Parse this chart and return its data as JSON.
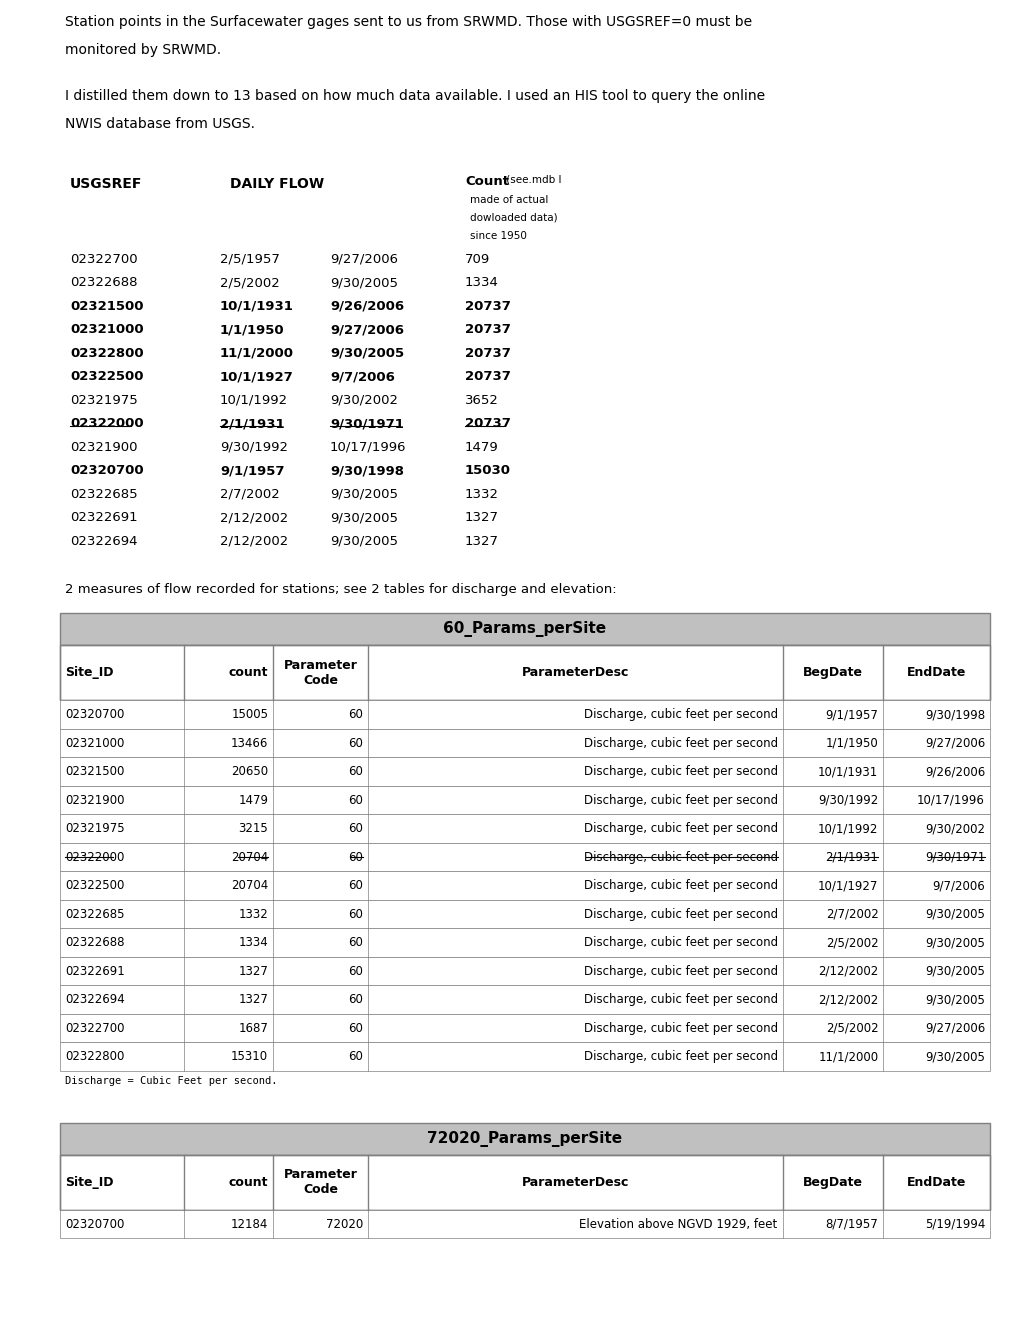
{
  "para1": "Station points in the Surfacewater gages sent to us from SRWMD. Those with USGSREF=0 must be\nmonitored by SRWMD.",
  "para2": "I distilled them down to 13 based on how much data available. I used an HIS tool to query the online\nNWIS database from USGS.",
  "summary_header": [
    "USGSREF",
    "DAILY FLOW",
    "",
    "Count (see.mdb I\nmade of actual\ndowloaded data)\nsince 1950"
  ],
  "summary_rows": [
    {
      "usgsref": "02322700",
      "start": "2/5/1957",
      "end": "9/27/2006",
      "count": "709",
      "bold": false,
      "strikethrough": false
    },
    {
      "usgsref": "02322688",
      "start": "2/5/2002",
      "end": "9/30/2005",
      "count": "1334",
      "bold": false,
      "strikethrough": false
    },
    {
      "usgsref": "02321500",
      "start": "10/1/1931",
      "end": "9/26/2006",
      "count": "20737",
      "bold": true,
      "strikethrough": false
    },
    {
      "usgsref": "02321000",
      "start": "1/1/1950",
      "end": "9/27/2006",
      "count": "20737",
      "bold": true,
      "strikethrough": false
    },
    {
      "usgsref": "02322800",
      "start": "11/1/2000",
      "end": "9/30/2005",
      "count": "20737",
      "bold": true,
      "strikethrough": false
    },
    {
      "usgsref": "02322500",
      "start": "10/1/1927",
      "end": "9/7/2006",
      "count": "20737",
      "bold": true,
      "strikethrough": false
    },
    {
      "usgsref": "02321975",
      "start": "10/1/1992",
      "end": "9/30/2002",
      "count": "3652",
      "bold": false,
      "strikethrough": false
    },
    {
      "usgsref": "02322000",
      "start": "2/1/1931",
      "end": "9/30/1971",
      "count": "20737",
      "bold": true,
      "strikethrough": true
    },
    {
      "usgsref": "02321900",
      "start": "9/30/1992",
      "end": "10/17/1996",
      "count": "1479",
      "bold": false,
      "strikethrough": false
    },
    {
      "usgsref": "02320700",
      "start": "9/1/1957",
      "end": "9/30/1998",
      "count": "15030",
      "bold": true,
      "strikethrough": false
    },
    {
      "usgsref": "02322685",
      "start": "2/7/2002",
      "end": "9/30/2005",
      "count": "1332",
      "bold": false,
      "strikethrough": false
    },
    {
      "usgsref": "02322691",
      "start": "2/12/2002",
      "end": "9/30/2005",
      "count": "1327",
      "bold": false,
      "strikethrough": false
    },
    {
      "usgsref": "02322694",
      "start": "2/12/2002",
      "end": "9/30/2005",
      "count": "1327",
      "bold": false,
      "strikethrough": false
    }
  ],
  "section_label": "2 measures of flow recorded for stations; see 2 tables for discharge and elevation:",
  "table1_title": "60_Params_perSite",
  "table1_headers": [
    "Site_ID",
    "count",
    "Parameter\nCode",
    "ParameterDesc",
    "BegDate",
    "EndDate"
  ],
  "table1_rows": [
    {
      "site": "02320700",
      "count": "15005",
      "code": "60",
      "desc": "Discharge, cubic feet per second",
      "beg": "9/1/1957",
      "end": "9/30/1998",
      "strike": false
    },
    {
      "site": "02321000",
      "count": "13466",
      "code": "60",
      "desc": "Discharge, cubic feet per second",
      "beg": "1/1/1950",
      "end": "9/27/2006",
      "strike": false
    },
    {
      "site": "02321500",
      "count": "20650",
      "code": "60",
      "desc": "Discharge, cubic feet per second",
      "beg": "10/1/1931",
      "end": "9/26/2006",
      "strike": false
    },
    {
      "site": "02321900",
      "count": "1479",
      "code": "60",
      "desc": "Discharge, cubic feet per second",
      "beg": "9/30/1992",
      "end": "10/17/1996",
      "strike": false
    },
    {
      "site": "02321975",
      "count": "3215",
      "code": "60",
      "desc": "Discharge, cubic feet per second",
      "beg": "10/1/1992",
      "end": "9/30/2002",
      "strike": false
    },
    {
      "site": "02322000",
      "count": "20704",
      "code": "60",
      "desc": "Discharge, cubic feet per second",
      "beg": "2/1/1931",
      "end": "9/30/1971",
      "strike": true
    },
    {
      "site": "02322500",
      "count": "20704",
      "code": "60",
      "desc": "Discharge, cubic feet per second",
      "beg": "10/1/1927",
      "end": "9/7/2006",
      "strike": false
    },
    {
      "site": "02322685",
      "count": "1332",
      "code": "60",
      "desc": "Discharge, cubic feet per second",
      "beg": "2/7/2002",
      "end": "9/30/2005",
      "strike": false
    },
    {
      "site": "02322688",
      "count": "1334",
      "code": "60",
      "desc": "Discharge, cubic feet per second",
      "beg": "2/5/2002",
      "end": "9/30/2005",
      "strike": false
    },
    {
      "site": "02322691",
      "count": "1327",
      "code": "60",
      "desc": "Discharge, cubic feet per second",
      "beg": "2/12/2002",
      "end": "9/30/2005",
      "strike": false
    },
    {
      "site": "02322694",
      "count": "1327",
      "code": "60",
      "desc": "Discharge, cubic feet per second",
      "beg": "2/12/2002",
      "end": "9/30/2005",
      "strike": false
    },
    {
      "site": "02322700",
      "count": "1687",
      "code": "60",
      "desc": "Discharge, cubic feet per second",
      "beg": "2/5/2002",
      "end": "9/27/2006",
      "strike": false
    },
    {
      "site": "02322800",
      "count": "15310",
      "code": "60",
      "desc": "Discharge, cubic feet per second",
      "beg": "11/1/2000",
      "end": "9/30/2005",
      "strike": false
    }
  ],
  "table1_footnote": "Discharge = Cubic Feet per second.",
  "table2_title": "72020_Params_perSite",
  "table2_headers": [
    "Site_ID",
    "count",
    "Parameter\nCode",
    "ParameterDesc",
    "BegDate",
    "EndDate"
  ],
  "table2_rows": [
    {
      "site": "02320700",
      "count": "12184",
      "code": "72020",
      "desc": "Elevation above NGVD 1929, feet",
      "beg": "8/7/1957",
      "end": "5/19/1994",
      "strike": false
    }
  ],
  "bg_color": "#ffffff",
  "text_color": "#000000",
  "table_header_bg": "#c0c0c0",
  "table_border_color": "#808080"
}
